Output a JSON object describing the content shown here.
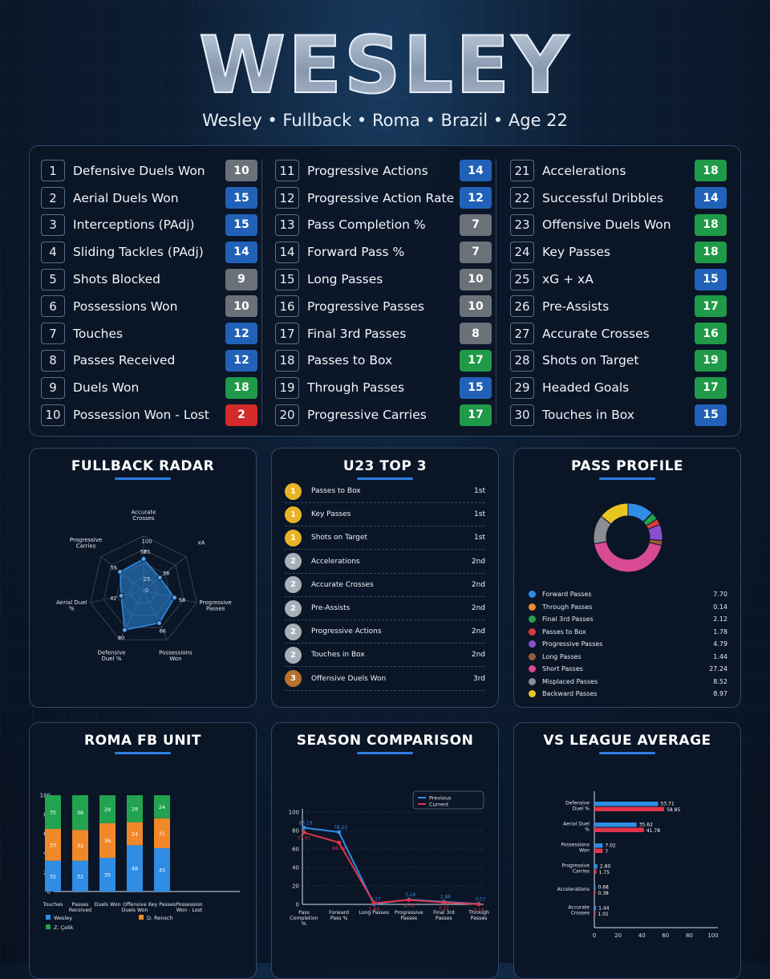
{
  "header": {
    "title": "WESLEY",
    "subtitle": "Wesley • Fullback • Roma • Brazil • Age 22"
  },
  "colors": {
    "green": "#1f9a48",
    "blue": "#2162b8",
    "gray": "#6b7178",
    "red": "#d42a2a"
  },
  "metrics": [
    {
      "n": "1",
      "label": "Defensive Duels Won",
      "value": "10",
      "tier": "gray"
    },
    {
      "n": "2",
      "label": "Aerial Duels Won",
      "value": "15",
      "tier": "blue"
    },
    {
      "n": "3",
      "label": "Interceptions (PAdj)",
      "value": "15",
      "tier": "blue"
    },
    {
      "n": "4",
      "label": "Sliding Tackles (PAdj)",
      "value": "14",
      "tier": "blue"
    },
    {
      "n": "5",
      "label": "Shots Blocked",
      "value": "9",
      "tier": "gray"
    },
    {
      "n": "6",
      "label": "Possessions Won",
      "value": "10",
      "tier": "gray"
    },
    {
      "n": "7",
      "label": "Touches",
      "value": "12",
      "tier": "blue"
    },
    {
      "n": "8",
      "label": "Passes Received",
      "value": "12",
      "tier": "blue"
    },
    {
      "n": "9",
      "label": "Duels Won",
      "value": "18",
      "tier": "green"
    },
    {
      "n": "10",
      "label": "Possession Won - Lost",
      "value": "2",
      "tier": "red"
    },
    {
      "n": "11",
      "label": "Progressive Actions",
      "value": "14",
      "tier": "blue"
    },
    {
      "n": "12",
      "label": "Progressive Action Rate",
      "value": "12",
      "tier": "blue"
    },
    {
      "n": "13",
      "label": "Pass Completion %",
      "value": "7",
      "tier": "gray"
    },
    {
      "n": "14",
      "label": "Forward Pass %",
      "value": "7",
      "tier": "gray"
    },
    {
      "n": "15",
      "label": "Long Passes",
      "value": "10",
      "tier": "gray"
    },
    {
      "n": "16",
      "label": "Progressive Passes",
      "value": "10",
      "tier": "gray"
    },
    {
      "n": "17",
      "label": "Final 3rd Passes",
      "value": "8",
      "tier": "gray"
    },
    {
      "n": "18",
      "label": "Passes to Box",
      "value": "17",
      "tier": "green"
    },
    {
      "n": "19",
      "label": "Through Passes",
      "value": "15",
      "tier": "blue"
    },
    {
      "n": "20",
      "label": "Progressive Carries",
      "value": "17",
      "tier": "green"
    },
    {
      "n": "21",
      "label": "Accelerations",
      "value": "18",
      "tier": "green"
    },
    {
      "n": "22",
      "label": "Successful Dribbles",
      "value": "14",
      "tier": "blue"
    },
    {
      "n": "23",
      "label": "Offensive Duels Won",
      "value": "18",
      "tier": "green"
    },
    {
      "n": "24",
      "label": "Key Passes",
      "value": "18",
      "tier": "green"
    },
    {
      "n": "25",
      "label": "xG + xA",
      "value": "15",
      "tier": "blue"
    },
    {
      "n": "26",
      "label": "Pre-Assists",
      "value": "17",
      "tier": "green"
    },
    {
      "n": "27",
      "label": "Accurate Crosses",
      "value": "16",
      "tier": "green"
    },
    {
      "n": "28",
      "label": "Shots on Target",
      "value": "19",
      "tier": "green"
    },
    {
      "n": "29",
      "label": "Headed Goals",
      "value": "17",
      "tier": "green"
    },
    {
      "n": "30",
      "label": "Touches in Box",
      "value": "15",
      "tier": "blue"
    }
  ],
  "radar": {
    "title": "FULLBACK RADAR",
    "ticks": [
      "25",
      "0",
      "75",
      "100"
    ],
    "axes": [
      {
        "label": "Accurate Crosses",
        "value": 58
      },
      {
        "label": "xA",
        "value": 38
      },
      {
        "label": "Progressive Passes",
        "value": 58
      },
      {
        "label": "Possessions Won",
        "value": 66
      },
      {
        "label": "Defensive Duel %",
        "value": 80
      },
      {
        "label": "Aerial Duel %",
        "value": 42
      },
      {
        "label": "Progressive Carries",
        "value": 55
      }
    ]
  },
  "top3": {
    "title": "U23 TOP 3",
    "items": [
      {
        "medal": "1",
        "label": "Passes to Box",
        "rank": "1st",
        "color": "#e8b325"
      },
      {
        "medal": "1",
        "label": "Key Passes",
        "rank": "1st",
        "color": "#e8b325"
      },
      {
        "medal": "1",
        "label": "Shots on Target",
        "rank": "1st",
        "color": "#e8b325"
      },
      {
        "medal": "2",
        "label": "Accelerations",
        "rank": "2nd",
        "color": "#a9afb8"
      },
      {
        "medal": "2",
        "label": "Accurate Crosses",
        "rank": "2nd",
        "color": "#a9afb8"
      },
      {
        "medal": "2",
        "label": "Pre-Assists",
        "rank": "2nd",
        "color": "#a9afb8"
      },
      {
        "medal": "2",
        "label": "Progressive Actions",
        "rank": "2nd",
        "color": "#a9afb8"
      },
      {
        "medal": "2",
        "label": "Touches in Box",
        "rank": "2nd",
        "color": "#a9afb8"
      },
      {
        "medal": "3",
        "label": "Offensive Duels Won",
        "rank": "3rd",
        "color": "#b8722e"
      }
    ]
  },
  "pass_profile": {
    "title": "PASS PROFILE",
    "items": [
      {
        "label": "Forward Passes",
        "value": "7.70",
        "color": "#2f8de4"
      },
      {
        "label": "Through Passes",
        "value": "0.14",
        "color": "#f0882a"
      },
      {
        "label": "Final 3rd Passes",
        "value": "2.12",
        "color": "#22a34f"
      },
      {
        "label": "Passes to Box",
        "value": "1.78",
        "color": "#dc3a3a"
      },
      {
        "label": "Progressive Passes",
        "value": "4.79",
        "color": "#8a4fcf"
      },
      {
        "label": "Long Passes",
        "value": "1.44",
        "color": "#9a5b3c"
      },
      {
        "label": "Short Passes",
        "value": "27.24",
        "color": "#d94a95"
      },
      {
        "label": "Misplaced Passes",
        "value": "8.52",
        "color": "#8a8d92"
      },
      {
        "label": "Backward Passes",
        "value": "8.97",
        "color": "#e8c521"
      }
    ]
  },
  "fb_unit": {
    "title": "ROMA FB UNIT",
    "yticks": [
      "0",
      "20",
      "40",
      "60",
      "80",
      "100"
    ],
    "categories": [
      "Touches",
      "Passes Received",
      "Duels Won",
      "Offensive Duels Won",
      "Key Passes",
      "Possession Won - Lost"
    ],
    "series": [
      {
        "name": "Wesley",
        "color": "#2f8de4",
        "values": [
          32,
          32,
          35,
          48,
          45,
          0
        ]
      },
      {
        "name": "D. Rensch",
        "color": "#f0882a",
        "values": [
          33,
          32,
          36,
          24,
          31,
          0
        ]
      },
      {
        "name": "Z. Çelik",
        "color": "#22a34f",
        "values": [
          35,
          36,
          29,
          28,
          24,
          0
        ]
      }
    ]
  },
  "season": {
    "title": "SEASON COMPARISON",
    "yticks": [
      "0",
      "20",
      "40",
      "60",
      "80",
      "100"
    ],
    "categories": [
      "Pass Completion %",
      "Forward Pass %",
      "Long Passes",
      "Progressive Passes",
      "Final 3rd Passes",
      "Through Passes"
    ],
    "series": [
      {
        "name": "Previous",
        "color": "#2f8de4",
        "values": [
          83.19,
          78.23,
          0.27,
          5.18,
          2.88,
          0.57
        ],
        "labels": [
          "83.19",
          "78.23",
          "0.27",
          "5.18",
          "2.88",
          "0.57"
        ]
      },
      {
        "name": "Current",
        "color": "#e0344a",
        "values": [
          77.91,
          66.99,
          1.44,
          4.79,
          2.12,
          0.14
        ],
        "labels": [
          "77.91",
          "66.99",
          "1.44",
          "4.79",
          "2.12",
          "0.14"
        ]
      }
    ]
  },
  "league": {
    "title": "VS LEAGUE AVERAGE",
    "xticks": [
      "0",
      "20",
      "40",
      "60",
      "80",
      "100"
    ],
    "items": [
      {
        "label": "Defensive Duel %",
        "blue": 53.71,
        "red": 58.85,
        "blue_label": "53.71",
        "red_label": "58.85"
      },
      {
        "label": "Aerial Duel %",
        "blue": 35.62,
        "red": 41.78,
        "blue_label": "35.62",
        "red_label": "41.78"
      },
      {
        "label": "Possessions Won",
        "blue": 7.02,
        "red": 7,
        "blue_label": "7.02",
        "red_label": "7"
      },
      {
        "label": "Progressive Carries",
        "blue": 2.6,
        "red": 1.75,
        "blue_label": "2.60",
        "red_label": "1.75"
      },
      {
        "label": "Accelerations",
        "blue": 0.68,
        "red": 0.38,
        "blue_label": "0.68",
        "red_label": "0.38"
      },
      {
        "label": "Accurate Crosses",
        "blue": 1.44,
        "red": 1.01,
        "blue_label": "1.44",
        "red_label": "1.01"
      }
    ]
  },
  "chart_data": [
    {
      "type": "bar",
      "title": "FULLBACK RADAR",
      "categories": [
        "Accurate Crosses",
        "xA",
        "Progressive Passes",
        "Possessions Won",
        "Defensive Duel %",
        "Aerial Duel %",
        "Progressive Carries"
      ],
      "values": [
        58,
        38,
        58,
        66,
        80,
        42,
        55
      ],
      "ylim": [
        0,
        100
      ]
    },
    {
      "type": "pie",
      "title": "PASS PROFILE",
      "categories": [
        "Forward Passes",
        "Through Passes",
        "Final 3rd Passes",
        "Passes to Box",
        "Progressive Passes",
        "Long Passes",
        "Short Passes",
        "Misplaced Passes",
        "Backward Passes"
      ],
      "values": [
        7.7,
        0.14,
        2.12,
        1.78,
        4.79,
        1.44,
        27.24,
        8.52,
        8.97
      ]
    },
    {
      "type": "bar",
      "title": "ROMA FB UNIT",
      "categories": [
        "Touches",
        "Passes Received",
        "Duels Won",
        "Offensive Duels Won",
        "Key Passes",
        "Possession Won - Lost"
      ],
      "series": [
        {
          "name": "Wesley",
          "values": [
            32,
            32,
            35,
            48,
            45,
            0
          ]
        },
        {
          "name": "D. Rensch",
          "values": [
            33,
            32,
            36,
            24,
            31,
            0
          ]
        },
        {
          "name": "Z. Çelik",
          "values": [
            35,
            36,
            29,
            28,
            24,
            0
          ]
        }
      ],
      "ylim": [
        0,
        100
      ]
    },
    {
      "type": "line",
      "title": "SEASON COMPARISON",
      "categories": [
        "Pass Completion %",
        "Forward Pass %",
        "Long Passes",
        "Progressive Passes",
        "Final 3rd Passes",
        "Through Passes"
      ],
      "series": [
        {
          "name": "Previous",
          "values": [
            83.19,
            78.23,
            0.27,
            5.18,
            2.88,
            0.57
          ]
        },
        {
          "name": "Current",
          "values": [
            77.91,
            66.99,
            1.44,
            4.79,
            2.12,
            0.14
          ]
        }
      ],
      "ylim": [
        0,
        100
      ]
    },
    {
      "type": "bar",
      "title": "VS LEAGUE AVERAGE",
      "categories": [
        "Defensive Duel %",
        "Aerial Duel %",
        "Possessions Won",
        "Progressive Carries",
        "Accelerations",
        "Accurate Crosses"
      ],
      "series": [
        {
          "values": [
            53.71,
            35.62,
            7.02,
            2.6,
            0.68,
            1.44
          ]
        },
        {
          "values": [
            58.85,
            41.78,
            7,
            1.75,
            0.38,
            1.01
          ]
        }
      ],
      "xlim": [
        0,
        100
      ]
    }
  ]
}
